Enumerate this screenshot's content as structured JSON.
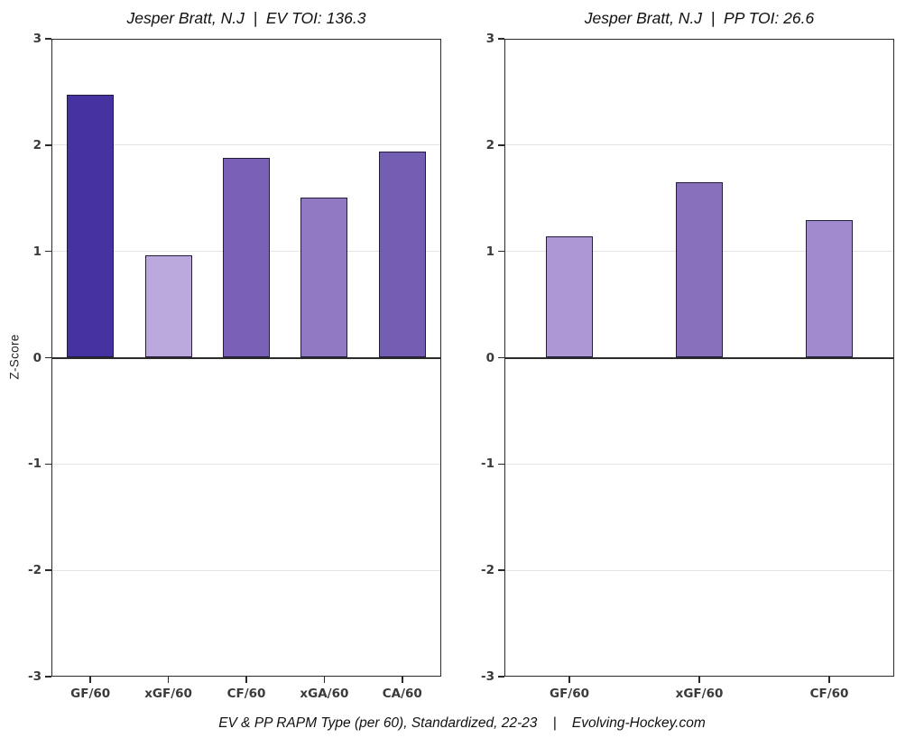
{
  "figure": {
    "caption": "EV & PP RAPM Type (per 60), Standardized, 22-23    |    Evolving-Hockey.com"
  },
  "chart_data": [
    {
      "type": "bar",
      "title": "Jesper Bratt, N.J  |  EV TOI: 136.3",
      "ylabel": "Z-Score",
      "xlabel": "",
      "ylim": [
        -3,
        3
      ],
      "yticks": [
        3,
        2,
        1,
        0,
        -1,
        -2,
        -3
      ],
      "gridlines": [
        2,
        1,
        -1,
        -2
      ],
      "grid": "horizontal-major",
      "legend_position": "none",
      "categories": [
        "GF/60",
        "xGF/60",
        "CF/60",
        "xGA/60",
        "CA/60"
      ],
      "values": [
        2.47,
        0.96,
        1.88,
        1.51,
        1.94
      ],
      "bar_colors": [
        "#4632a1",
        "#bba8dd",
        "#7b60b8",
        "#9179c4",
        "#745eb4"
      ],
      "bar_edge_color": "#221c3a"
    },
    {
      "type": "bar",
      "title": "Jesper Bratt, N.J  |  PP TOI: 26.6",
      "ylabel": "",
      "xlabel": "",
      "ylim": [
        -3,
        3
      ],
      "yticks": [
        3,
        2,
        1,
        0,
        -1,
        -2,
        -3
      ],
      "gridlines": [
        2,
        1,
        -1,
        -2
      ],
      "grid": "horizontal-major",
      "legend_position": "none",
      "categories": [
        "GF/60",
        "xGF/60",
        "CF/60"
      ],
      "values": [
        1.14,
        1.65,
        1.29
      ],
      "bar_colors": [
        "#ad97d4",
        "#8870bd",
        "#a28ace"
      ],
      "bar_edge_color": "#221c3a"
    }
  ]
}
